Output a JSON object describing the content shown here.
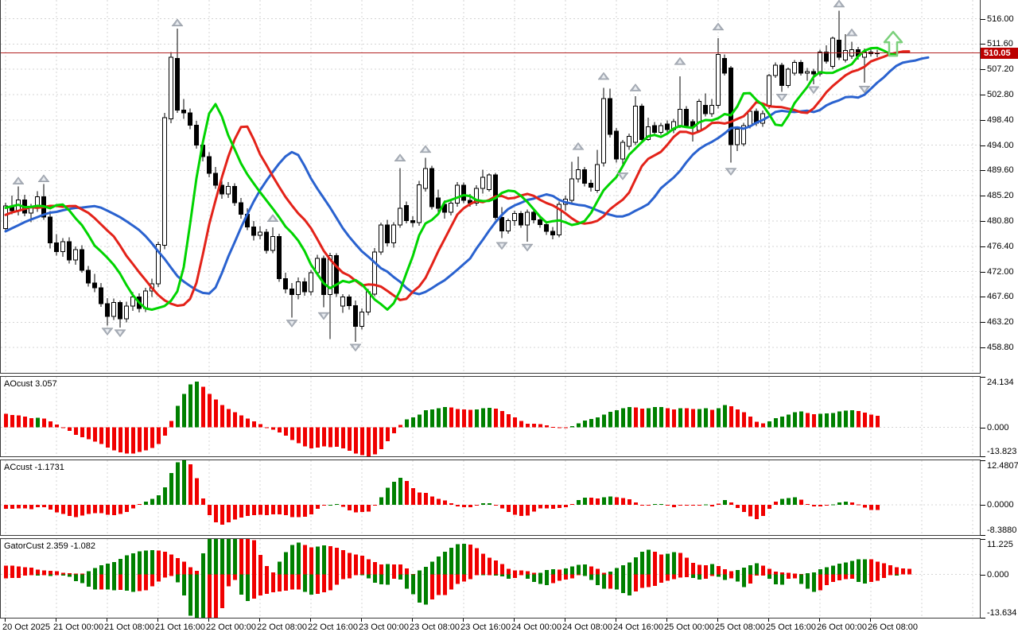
{
  "chart_data": {
    "type": "candlestick_with_indicator_subwindows",
    "price_axis": {
      "tick_labels": [
        "516.00",
        "511.60",
        "507.20",
        "502.80",
        "498.40",
        "494.00",
        "489.60",
        "485.20",
        "480.80",
        "476.40",
        "472.00",
        "467.60",
        "463.20",
        "458.80"
      ],
      "tick_values": [
        516.0,
        511.6,
        507.2,
        502.8,
        498.4,
        494.0,
        489.6,
        485.2,
        480.8,
        476.4,
        472.0,
        467.6,
        463.2,
        458.8
      ],
      "view_max": 519.25,
      "view_min": 454.25,
      "current_price": 510.05,
      "current_price_label": "510.05"
    },
    "time_axis": {
      "labels": [
        "20 Oct 2025",
        "21 Oct 00:00",
        "21 Oct 08:00",
        "21 Oct 16:00",
        "22 Oct 00:00",
        "22 Oct 08:00",
        "22 Oct 16:00",
        "23 Oct 00:00",
        "23 Oct 08:00",
        "23 Oct 16:00",
        "24 Oct 00:00",
        "24 Oct 08:00",
        "24 Oct 16:00",
        "25 Oct 00:00",
        "25 Oct 08:00",
        "25 Oct 16:00",
        "26 Oct 00:00",
        "26 Oct 08:00"
      ]
    },
    "preroll_closes": [
      461.0,
      462.2,
      461.6,
      463.0,
      464.2,
      463.6,
      465.0,
      466.2,
      465.6,
      467.0,
      468.2,
      467.6,
      469.0,
      470.2,
      469.6,
      471.0,
      472.2,
      471.6,
      473.0,
      474.2,
      473.6,
      475.0,
      476.2,
      475.6,
      477.0,
      478.2,
      477.6,
      479.0,
      480.0,
      479.4,
      480.6,
      481.6,
      481.0,
      482.0,
      482.8,
      482.2,
      483.2,
      483.8,
      483.0,
      483.6,
      484.2,
      483.8
    ],
    "candles": [
      [
        479.5,
        484.0,
        478.9,
        483.4
      ],
      [
        483.4,
        485.2,
        482.0,
        482.6
      ],
      [
        482.6,
        486.8,
        481.8,
        484.5
      ],
      [
        484.5,
        485.4,
        481.6,
        482.2
      ],
      [
        482.2,
        483.8,
        480.6,
        483.2
      ],
      [
        483.2,
        486.0,
        482.4,
        485.0
      ],
      [
        485.0,
        487.2,
        481.0,
        481.5
      ],
      [
        481.5,
        482.5,
        476.0,
        477.0
      ],
      [
        477.0,
        478.5,
        474.8,
        475.5
      ],
      [
        475.5,
        477.8,
        474.6,
        477.2
      ],
      [
        477.2,
        478.0,
        473.4,
        474.0
      ],
      [
        474.0,
        476.4,
        473.2,
        475.8
      ],
      [
        475.8,
        476.6,
        471.8,
        472.2
      ],
      [
        472.2,
        473.0,
        469.4,
        470.0
      ],
      [
        470.0,
        471.6,
        468.4,
        469.2
      ],
      [
        469.2,
        470.0,
        465.9,
        466.4
      ],
      [
        466.4,
        467.4,
        462.6,
        464.2
      ],
      [
        464.2,
        467.3,
        463.6,
        466.6
      ],
      [
        466.6,
        467.0,
        462.3,
        463.8
      ],
      [
        463.8,
        466.8,
        463.2,
        466.0
      ],
      [
        466.0,
        468.4,
        465.2,
        467.6
      ],
      [
        467.6,
        468.2,
        464.9,
        465.6
      ],
      [
        465.6,
        469.2,
        465.0,
        468.6
      ],
      [
        468.6,
        470.8,
        467.6,
        469.9
      ],
      [
        469.9,
        477.2,
        469.3,
        476.7
      ],
      [
        476.6,
        499.6,
        475.9,
        498.8
      ],
      [
        498.6,
        510.2,
        497.8,
        509.3
      ],
      [
        509.1,
        514.3,
        499.6,
        500.1
      ],
      [
        500.1,
        502.0,
        498.6,
        499.6
      ],
      [
        499.6,
        500.4,
        496.8,
        497.5
      ],
      [
        497.5,
        498.2,
        493.4,
        494.0
      ],
      [
        494.0,
        495.2,
        491.2,
        492.0
      ],
      [
        492.0,
        492.8,
        488.4,
        489.1
      ],
      [
        489.1,
        490.2,
        486.4,
        487.0
      ],
      [
        487.0,
        487.8,
        484.7,
        485.5
      ],
      [
        485.5,
        487.6,
        484.8,
        486.8
      ],
      [
        486.8,
        487.4,
        483.4,
        484.0
      ],
      [
        484.0,
        484.8,
        481.2,
        482.0
      ],
      [
        482.0,
        483.0,
        479.2,
        479.8
      ],
      [
        479.8,
        480.8,
        477.4,
        478.3
      ],
      [
        478.3,
        479.9,
        477.6,
        478.9
      ],
      [
        478.9,
        479.4,
        475.1,
        475.7
      ],
      [
        475.7,
        479.7,
        475.2,
        478.1
      ],
      [
        478.1,
        478.6,
        470.2,
        470.8
      ],
      [
        470.8,
        471.8,
        468.2,
        469.0
      ],
      [
        469.0,
        470.0,
        464.0,
        468.0
      ],
      [
        468.0,
        471.0,
        467.2,
        470.2
      ],
      [
        470.2,
        470.9,
        467.8,
        468.5
      ],
      [
        468.5,
        472.3,
        467.9,
        471.8
      ],
      [
        471.8,
        474.9,
        471.2,
        474.3
      ],
      [
        474.3,
        474.8,
        465.8,
        468.0
      ],
      [
        468.0,
        475.3,
        460.3,
        474.8
      ],
      [
        474.8,
        475.2,
        467.6,
        468.2
      ],
      [
        466.0,
        468.1,
        464.8,
        467.6
      ],
      [
        467.6,
        468.0,
        465.4,
        466.1
      ],
      [
        466.1,
        467.0,
        459.8,
        462.5
      ],
      [
        462.5,
        465.6,
        461.9,
        465.0
      ],
      [
        465.0,
        469.0,
        464.4,
        468.5
      ],
      [
        468.1,
        476.1,
        467.7,
        475.4
      ],
      [
        475.4,
        480.5,
        474.9,
        480.1
      ],
      [
        480.1,
        481.0,
        476.4,
        477.0
      ],
      [
        477.0,
        480.6,
        476.2,
        480.1
      ],
      [
        480.1,
        490.0,
        479.6,
        483.0
      ],
      [
        483.5,
        484.2,
        480.4,
        480.9
      ],
      [
        480.9,
        481.6,
        479.8,
        480.5
      ],
      [
        480.5,
        487.8,
        480.0,
        487.1
      ],
      [
        486.5,
        491.8,
        485.9,
        489.9
      ],
      [
        489.9,
        490.4,
        482.8,
        483.3
      ],
      [
        484.8,
        486.3,
        482.4,
        483.0
      ],
      [
        483.7,
        484.4,
        481.2,
        482.3
      ],
      [
        482.3,
        484.4,
        481.8,
        483.9
      ],
      [
        483.9,
        487.6,
        483.3,
        487.0
      ],
      [
        487.0,
        487.5,
        483.9,
        484.4
      ],
      [
        484.4,
        485.5,
        483.3,
        483.9
      ],
      [
        483.9,
        487.0,
        483.4,
        486.5
      ],
      [
        486.5,
        489.7,
        485.6,
        488.4
      ],
      [
        486.3,
        489.1,
        485.9,
        488.8
      ],
      [
        488.8,
        489.2,
        481.0,
        481.4
      ],
      [
        481.4,
        483.2,
        477.8,
        479.1
      ],
      [
        479.1,
        481.2,
        478.6,
        480.9
      ],
      [
        480.9,
        482.6,
        480.0,
        482.1
      ],
      [
        482.1,
        482.5,
        479.6,
        480.1
      ],
      [
        480.1,
        482.8,
        477.2,
        482.3
      ],
      [
        482.3,
        482.9,
        480.4,
        481.0
      ],
      [
        481.0,
        481.6,
        479.6,
        480.2
      ],
      [
        480.2,
        480.8,
        478.4,
        479.0
      ],
      [
        479.0,
        479.8,
        477.6,
        478.4
      ],
      [
        478.4,
        484.2,
        478.0,
        483.7
      ],
      [
        483.7,
        485.2,
        482.6,
        484.6
      ],
      [
        484.4,
        491.1,
        484.0,
        488.1
      ],
      [
        488.1,
        492.0,
        487.5,
        489.7
      ],
      [
        489.7,
        490.2,
        486.8,
        487.4
      ],
      [
        487.4,
        488.0,
        485.9,
        486.7
      ],
      [
        486.1,
        493.2,
        485.7,
        490.6
      ],
      [
        490.9,
        504.0,
        490.3,
        502.1
      ],
      [
        502.1,
        503.8,
        495.3,
        495.9
      ],
      [
        496.4,
        497.0,
        491.0,
        491.6
      ],
      [
        491.6,
        494.9,
        490.0,
        494.5
      ],
      [
        493.8,
        496.0,
        493.2,
        495.5
      ],
      [
        494.5,
        502.5,
        494.0,
        500.8
      ],
      [
        500.8,
        501.2,
        494.6,
        495.0
      ],
      [
        495.0,
        498.8,
        494.8,
        497.2
      ],
      [
        497.4,
        498.0,
        495.7,
        496.2
      ],
      [
        496.2,
        497.9,
        495.8,
        497.4
      ],
      [
        497.7,
        498.3,
        496.2,
        496.7
      ],
      [
        496.7,
        498.6,
        496.1,
        498.1
      ],
      [
        497.4,
        506.0,
        497.0,
        500.2
      ],
      [
        500.2,
        500.8,
        497.0,
        497.4
      ],
      [
        498.1,
        498.5,
        494.6,
        497.2
      ],
      [
        496.6,
        502.0,
        496.2,
        501.6
      ],
      [
        500.9,
        503.0,
        499.0,
        499.5
      ],
      [
        499.5,
        502.0,
        498.9,
        500.9
      ],
      [
        500.9,
        512.6,
        500.4,
        509.8
      ],
      [
        509.1,
        509.8,
        506.1,
        506.5
      ],
      [
        507.4,
        507.8,
        491.0,
        494.1
      ],
      [
        494.1,
        497.2,
        493.0,
        496.8
      ],
      [
        494.2,
        497.9,
        493.8,
        497.4
      ],
      [
        497.4,
        500.4,
        496.9,
        499.9
      ],
      [
        499.9,
        500.4,
        497.3,
        497.8
      ],
      [
        497.8,
        500.0,
        497.2,
        499.5
      ],
      [
        500.9,
        506.4,
        500.3,
        506.1
      ],
      [
        506.1,
        508.4,
        505.7,
        507.9
      ],
      [
        507.9,
        508.3,
        503.3,
        504.4
      ],
      [
        504.4,
        507.5,
        504.0,
        507.2
      ],
      [
        506.5,
        508.8,
        506.1,
        508.4
      ],
      [
        508.4,
        508.8,
        506.1,
        506.5
      ],
      [
        506.5,
        507.4,
        505.2,
        506.8
      ],
      [
        506.8,
        507.3,
        504.6,
        506.4
      ],
      [
        506.4,
        510.6,
        506.0,
        510.2
      ],
      [
        510.2,
        511.4,
        508.2,
        508.6
      ],
      [
        507.7,
        512.9,
        507.3,
        512.6
      ],
      [
        512.3,
        517.4,
        508.8,
        509.3
      ],
      [
        508.8,
        513.3,
        508.4,
        510.5
      ],
      [
        509.5,
        512.0,
        509.0,
        510.6
      ],
      [
        510.6,
        511.1,
        508.9,
        509.5
      ],
      [
        509.3,
        510.8,
        504.9,
        510.2
      ],
      [
        510.2,
        510.9,
        509.4,
        509.9
      ],
      [
        509.9,
        510.6,
        509.3,
        510.05
      ]
    ],
    "overlays": {
      "alligator": {
        "jaw_color": "#2a62cf",
        "teeth_color": "#e32219",
        "lips_color": "#00d400"
      },
      "fractals": {
        "up": [
          [
            2,
            486.8
          ],
          [
            6,
            487.2
          ],
          [
            27,
            514.3
          ],
          [
            42,
            480.3
          ],
          [
            62,
            490.8
          ],
          [
            66,
            492.3
          ],
          [
            90,
            492.8
          ],
          [
            94,
            505.0
          ],
          [
            99,
            503.0
          ],
          [
            106,
            507.6
          ],
          [
            112,
            513.6
          ],
          [
            131,
            517.6
          ],
          [
            133,
            512.6
          ]
        ],
        "down": [
          [
            16,
            462.6
          ],
          [
            18,
            462.3
          ],
          [
            45,
            464.0
          ],
          [
            50,
            465.3
          ],
          [
            55,
            459.8
          ],
          [
            78,
            477.5
          ],
          [
            82,
            477.2
          ],
          [
            97,
            489.6
          ],
          [
            114,
            490.4
          ],
          [
            122,
            503.3
          ],
          [
            127,
            504.6
          ],
          [
            135,
            504.7
          ]
        ]
      },
      "signal_arrow": {
        "direction": "up",
        "x_index": 139.5,
        "top_price": 513.7,
        "color": "#7bd07b"
      }
    },
    "panels": [
      {
        "id": "ao",
        "label": "AOcust 3.057",
        "max": 24.134,
        "min": -13.823,
        "axis_labels": {
          "max": "24.134",
          "zero": "0.000",
          "min": "-13.823"
        }
      },
      {
        "id": "ac",
        "label": "ACcust -1.1731",
        "max": 12.4807,
        "min": -8.388,
        "axis_labels": {
          "max": "12.4807",
          "zero": "0.0000",
          "min": "-8.3880"
        }
      },
      {
        "id": "gator",
        "label": "GatorCust 2.359 -1.082",
        "max": 11.225,
        "min": -13.634,
        "axis_labels": {
          "max": "11.225",
          "zero": "0.000",
          "min": "-13.634"
        }
      }
    ],
    "colors": {
      "background": "#ffffff",
      "grid": "#d4d4d4",
      "bull_body": "#ffffff",
      "bear_body": "#000000",
      "candle_outline": "#000000",
      "hist_up": "#008000",
      "hist_down": "#f00000",
      "price_line": "#b22222",
      "badge_bg": "#bb0000",
      "badge_text": "#ffffff",
      "fractal": "#a8aeb8",
      "fractal_highlight": "#e9ecf0",
      "axis_text": "#000000"
    }
  }
}
